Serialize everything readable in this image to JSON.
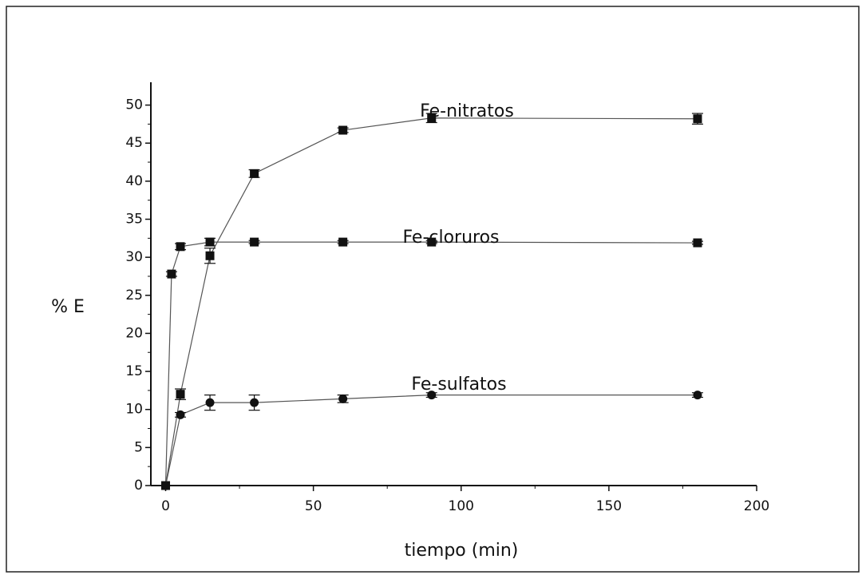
{
  "chart_data": {
    "type": "line",
    "xlabel": "tiempo (min)",
    "ylabel": "% E",
    "xlim": [
      -5,
      200
    ],
    "xticks": [
      0,
      50,
      100,
      150,
      200
    ],
    "ylim": [
      0,
      53
    ],
    "yticks": [
      0,
      5,
      10,
      15,
      20,
      25,
      30,
      35,
      40,
      45,
      50
    ],
    "series": [
      {
        "name": "Fe-nitratos",
        "color": "#111111",
        "marker": "square",
        "x": [
          0,
          5,
          15,
          30,
          60,
          90,
          180
        ],
        "values": [
          0,
          12,
          30.2,
          41,
          46.7,
          48.3,
          48.2
        ],
        "errors": [
          0,
          0.7,
          1.0,
          0.5,
          0.3,
          0.6,
          0.7
        ]
      },
      {
        "name": "Fe-cloruros",
        "color": "#111111",
        "marker": "square",
        "x": [
          0,
          2,
          5,
          15,
          30,
          60,
          90,
          180
        ],
        "values": [
          0,
          27.8,
          31.4,
          32,
          32,
          32,
          32,
          31.9
        ],
        "errors": [
          0,
          0.3,
          0.4,
          0.5,
          0.2,
          0.2,
          0.2,
          0.2
        ]
      },
      {
        "name": "Fe-sulfatos",
        "color": "#111111",
        "marker": "circle",
        "x": [
          0,
          5,
          15,
          30,
          60,
          90,
          180
        ],
        "values": [
          0,
          9.3,
          10.9,
          10.9,
          11.4,
          11.9,
          11.9
        ],
        "errors": [
          0,
          0.3,
          1.0,
          1.0,
          0.5,
          0.3,
          0.3
        ]
      }
    ]
  }
}
